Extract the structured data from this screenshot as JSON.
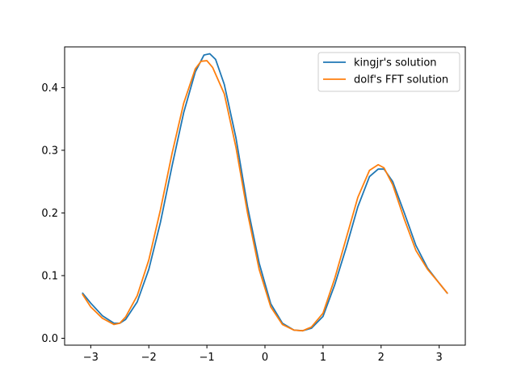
{
  "chart_data": {
    "type": "line",
    "title": "",
    "xlabel": "",
    "ylabel": "",
    "xlim": [
      -3.45,
      3.45
    ],
    "ylim": [
      -0.011,
      0.465
    ],
    "xticks": [
      -3,
      -2,
      -1,
      0,
      1,
      2,
      3
    ],
    "xtick_labels": [
      "−3",
      "−2",
      "−1",
      "0",
      "1",
      "2",
      "3"
    ],
    "yticks": [
      0.0,
      0.1,
      0.2,
      0.3,
      0.4
    ],
    "ytick_labels": [
      "0.0",
      "0.1",
      "0.2",
      "0.3",
      "0.4"
    ],
    "grid": false,
    "legend_position": "top-right",
    "series": [
      {
        "name": "kingjr's solution",
        "color": "#1f77b4",
        "x": [
          -3.14,
          -3.0,
          -2.8,
          -2.6,
          -2.5,
          -2.4,
          -2.2,
          -2.0,
          -1.8,
          -1.6,
          -1.4,
          -1.2,
          -1.05,
          -0.95,
          -0.85,
          -0.7,
          -0.5,
          -0.3,
          -0.1,
          0.1,
          0.3,
          0.5,
          0.65,
          0.8,
          1.0,
          1.2,
          1.4,
          1.6,
          1.8,
          1.95,
          2.05,
          2.2,
          2.4,
          2.6,
          2.8,
          3.0,
          3.14
        ],
        "y": [
          0.072,
          0.056,
          0.036,
          0.024,
          0.024,
          0.03,
          0.058,
          0.11,
          0.185,
          0.275,
          0.36,
          0.425,
          0.452,
          0.454,
          0.445,
          0.405,
          0.32,
          0.21,
          0.12,
          0.055,
          0.024,
          0.013,
          0.012,
          0.016,
          0.035,
          0.085,
          0.145,
          0.21,
          0.258,
          0.27,
          0.27,
          0.25,
          0.2,
          0.148,
          0.112,
          0.088,
          0.072
        ]
      },
      {
        "name": "dolf's FFT solution",
        "color": "#ff7f0e",
        "x": [
          -3.14,
          -3.0,
          -2.8,
          -2.6,
          -2.5,
          -2.4,
          -2.2,
          -2.0,
          -1.8,
          -1.6,
          -1.4,
          -1.2,
          -1.1,
          -1.0,
          -0.9,
          -0.7,
          -0.5,
          -0.3,
          -0.1,
          0.1,
          0.3,
          0.5,
          0.65,
          0.8,
          1.0,
          1.2,
          1.4,
          1.6,
          1.8,
          1.95,
          2.05,
          2.2,
          2.4,
          2.6,
          2.8,
          3.0,
          3.14
        ],
        "y": [
          0.07,
          0.05,
          0.032,
          0.022,
          0.024,
          0.034,
          0.068,
          0.125,
          0.205,
          0.295,
          0.375,
          0.43,
          0.442,
          0.443,
          0.432,
          0.39,
          0.305,
          0.2,
          0.11,
          0.05,
          0.022,
          0.013,
          0.012,
          0.018,
          0.04,
          0.095,
          0.16,
          0.225,
          0.268,
          0.277,
          0.272,
          0.245,
          0.19,
          0.14,
          0.11,
          0.088,
          0.072
        ]
      }
    ]
  }
}
